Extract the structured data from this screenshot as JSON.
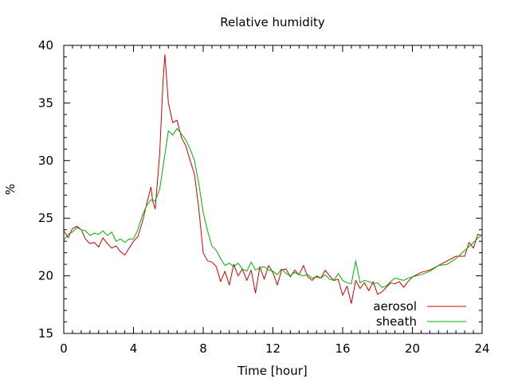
{
  "chart_data": {
    "type": "line",
    "title": "Relative humidity",
    "xlabel": "Time [hour]",
    "ylabel": "%",
    "xlim": [
      0,
      24
    ],
    "ylim": [
      15,
      40
    ],
    "xticks": [
      0,
      4,
      8,
      12,
      16,
      20,
      24
    ],
    "yticks": [
      15,
      20,
      25,
      30,
      35,
      40
    ],
    "grid": false,
    "legend_position": "bottom-right",
    "series": [
      {
        "name": "aerosol",
        "color": "#d40000",
        "x": [
          0,
          0.25,
          0.5,
          0.75,
          1,
          1.25,
          1.5,
          1.75,
          2,
          2.25,
          2.5,
          2.75,
          3,
          3.25,
          3.5,
          3.75,
          4,
          4.25,
          4.5,
          4.75,
          5,
          5.1,
          5.25,
          5.5,
          5.7,
          5.8,
          6,
          6.25,
          6.5,
          6.75,
          7,
          7.25,
          7.5,
          7.75,
          8,
          8.25,
          8.5,
          8.75,
          9,
          9.25,
          9.5,
          9.75,
          10,
          10.25,
          10.5,
          10.75,
          11,
          11.25,
          11.5,
          11.75,
          12,
          12.25,
          12.5,
          12.75,
          13,
          13.25,
          13.5,
          13.75,
          14,
          14.25,
          14.5,
          14.75,
          15,
          15.25,
          15.5,
          15.75,
          16,
          16.25,
          16.5,
          16.75,
          17,
          17.25,
          17.5,
          17.75,
          18,
          18.25,
          18.5,
          18.75,
          19,
          19.25,
          19.5,
          19.75,
          20,
          20.5,
          21,
          21.5,
          22,
          22.5,
          23,
          23.25,
          23.5,
          23.75,
          24
        ],
        "y": [
          23.9,
          23.3,
          24.1,
          24.3,
          24.0,
          23.2,
          22.8,
          22.9,
          22.5,
          23.3,
          22.8,
          22.4,
          22.6,
          22.1,
          21.8,
          22.4,
          23.0,
          23.4,
          24.6,
          26.2,
          27.7,
          26.5,
          25.8,
          30.5,
          37.0,
          39.2,
          35.0,
          33.3,
          33.5,
          32.0,
          31.3,
          30.0,
          28.8,
          25.8,
          22.0,
          21.3,
          21.2,
          20.8,
          19.5,
          20.4,
          19.2,
          21.0,
          20.0,
          20.6,
          19.6,
          20.5,
          18.5,
          20.8,
          19.7,
          20.9,
          20.3,
          19.2,
          20.5,
          20.6,
          19.9,
          20.5,
          20.1,
          20.9,
          19.9,
          19.6,
          20.0,
          19.8,
          20.5,
          20.0,
          19.6,
          19.7,
          18.3,
          19.1,
          17.6,
          19.6,
          18.9,
          19.4,
          18.7,
          19.5,
          18.4,
          18.6,
          19.0,
          19.4,
          19.3,
          19.5,
          19.0,
          19.5,
          19.9,
          20.3,
          20.5,
          20.9,
          21.3,
          21.7,
          21.7,
          22.9,
          22.4,
          23.6,
          23.5
        ]
      },
      {
        "name": "sheath",
        "color": "#00b000",
        "x": [
          0,
          0.25,
          0.5,
          0.75,
          1,
          1.25,
          1.5,
          1.75,
          2,
          2.25,
          2.5,
          2.75,
          3,
          3.25,
          3.5,
          3.75,
          4,
          4.25,
          4.5,
          4.75,
          5,
          5.25,
          5.5,
          5.75,
          6,
          6.25,
          6.5,
          6.75,
          7,
          7.25,
          7.5,
          7.75,
          8,
          8.25,
          8.5,
          8.75,
          9,
          9.25,
          9.5,
          9.75,
          10,
          10.25,
          10.5,
          10.75,
          11,
          11.25,
          11.5,
          11.75,
          12,
          12.25,
          12.5,
          12.75,
          13,
          13.25,
          13.5,
          13.75,
          14,
          14.25,
          14.5,
          14.75,
          15,
          15.25,
          15.5,
          15.75,
          16,
          16.25,
          16.5,
          16.75,
          17,
          17.25,
          17.5,
          17.75,
          18,
          18.25,
          18.5,
          18.75,
          19,
          19.25,
          19.5,
          19.75,
          20,
          20.5,
          21,
          21.5,
          22,
          22.5,
          23,
          23.5,
          24
        ],
        "y": [
          23.1,
          23.6,
          23.8,
          24.2,
          24.0,
          23.9,
          23.5,
          23.7,
          23.6,
          23.9,
          23.5,
          23.8,
          23.0,
          23.2,
          22.9,
          23.2,
          23.2,
          24.0,
          25.2,
          26.1,
          26.6,
          26.5,
          27.5,
          30.0,
          32.6,
          32.2,
          32.8,
          32.3,
          31.8,
          31.0,
          30.0,
          28.0,
          25.5,
          23.9,
          22.6,
          22.2,
          21.5,
          20.9,
          21.1,
          20.8,
          21.1,
          20.6,
          20.4,
          21.2,
          20.5,
          20.7,
          20.8,
          20.5,
          20.4,
          20.1,
          20.6,
          20.2,
          20.0,
          20.3,
          20.1,
          20.0,
          20.1,
          19.8,
          19.9,
          19.8,
          20.1,
          19.7,
          19.6,
          20.2,
          19.6,
          19.4,
          19.3,
          21.3,
          19.4,
          19.6,
          19.5,
          19.3,
          19.4,
          19.0,
          19.1,
          19.5,
          19.8,
          19.7,
          19.6,
          19.8,
          19.9,
          20.1,
          20.4,
          20.9,
          21.0,
          21.5,
          22.2,
          22.9,
          23.6
        ]
      }
    ]
  }
}
